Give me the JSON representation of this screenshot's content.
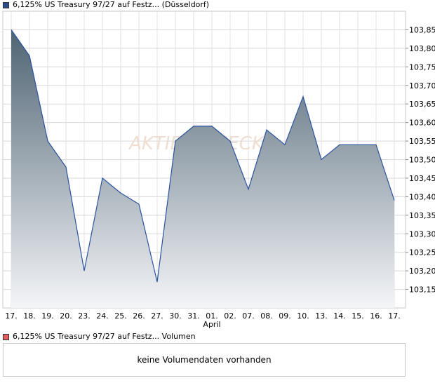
{
  "legend": {
    "price_label": "6,125% US Treasury 97/27 auf Festz... (Düsseldorf)",
    "price_color": "#2a4a8a",
    "volume_label": "6,125% US Treasury 97/27 auf Festz... Volumen",
    "volume_color": "#e06060"
  },
  "watermark": "AKTIEN CHECK",
  "volume_panel": {
    "message": "keine Volumendaten vorhanden"
  },
  "chart_data": {
    "type": "area",
    "x": [
      "17.",
      "18.",
      "19.",
      "20.",
      "23.",
      "24.",
      "25.",
      "26.",
      "27.",
      "30.",
      "31.",
      "01.",
      "02.",
      "07.",
      "08.",
      "09.",
      "10.",
      "13.",
      "14.",
      "15.",
      "16.",
      "17."
    ],
    "x_sublabels": {
      "11": "April"
    },
    "series": [
      {
        "values": [
          103.85,
          103.78,
          103.55,
          103.48,
          103.2,
          103.45,
          103.41,
          103.38,
          103.17,
          103.55,
          103.59,
          103.59,
          103.55,
          103.42,
          103.58,
          103.54,
          103.67,
          103.5,
          103.54,
          103.54,
          103.54,
          103.39
        ]
      }
    ],
    "y_ticks": [
      "103,15",
      "103,20",
      "103,25",
      "103,30",
      "103,35",
      "103,40",
      "103,45",
      "103,50",
      "103,55",
      "103,60",
      "103,65",
      "103,70",
      "103,75",
      "103,80",
      "103,85"
    ],
    "ylim": [
      103.1,
      103.9
    ],
    "y_axis_position": "right",
    "grid": true,
    "colors": {
      "line": "#2a52a0",
      "fill_top": "#4f6473",
      "fill_bottom": "#f4f5f8"
    }
  }
}
